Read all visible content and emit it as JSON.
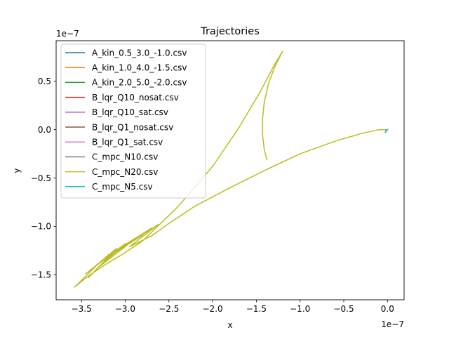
{
  "chart_data": {
    "type": "line",
    "title": "Trajectories",
    "xlabel": "x",
    "ylabel": "y",
    "x_scale_label": "1e−7",
    "y_scale_label": "1e−7",
    "x_scale": 1e-07,
    "y_scale": 1e-07,
    "xlim": [
      -3.79,
      0.19
    ],
    "ylim": [
      -1.76,
      0.92
    ],
    "x_ticks": [
      {
        "value": -3.5,
        "label": "−3.5"
      },
      {
        "value": -3.0,
        "label": "−3.0"
      },
      {
        "value": -2.5,
        "label": "−2.5"
      },
      {
        "value": -2.0,
        "label": "−2.0"
      },
      {
        "value": -1.5,
        "label": "−1.5"
      },
      {
        "value": -1.0,
        "label": "−1.0"
      },
      {
        "value": -0.5,
        "label": "−0.5"
      },
      {
        "value": 0.0,
        "label": "0.0"
      }
    ],
    "y_ticks": [
      {
        "value": 0.5,
        "label": "0.5"
      },
      {
        "value": 0.0,
        "label": "0.0"
      },
      {
        "value": -0.5,
        "label": "−0.5"
      },
      {
        "value": -1.0,
        "label": "−1.0"
      },
      {
        "value": -1.5,
        "label": "−1.5"
      }
    ],
    "grid": false,
    "legend_position": "upper-left",
    "series": [
      {
        "name": "A_kin_0.5_3.0_-1.0.csv",
        "color": "#1f77b4",
        "x": [
          0.0,
          -0.01,
          -0.02
        ],
        "y": [
          0.0,
          -0.01,
          -0.02
        ]
      },
      {
        "name": "A_kin_1.0_4.0_-1.5.csv",
        "color": "#ff7f0e",
        "x": [
          0.0,
          -0.01,
          -0.02
        ],
        "y": [
          0.0,
          -0.01,
          -0.02
        ]
      },
      {
        "name": "A_kin_2.0_5.0_-2.0.csv",
        "color": "#2ca02c",
        "x": [
          0.0,
          -0.01,
          -0.02
        ],
        "y": [
          0.0,
          -0.01,
          -0.02
        ]
      },
      {
        "name": "B_lqr_Q10_nosat.csv",
        "color": "#d62728",
        "x": [
          0.0,
          -0.01,
          -0.02
        ],
        "y": [
          0.0,
          -0.01,
          -0.02
        ]
      },
      {
        "name": "B_lqr_Q10_sat.csv",
        "color": "#9467bd",
        "x": [
          0.0,
          -0.01,
          -0.02
        ],
        "y": [
          0.0,
          -0.01,
          -0.02
        ]
      },
      {
        "name": "B_lqr_Q1_nosat.csv",
        "color": "#8c564b",
        "x": [
          0.0,
          -0.01,
          -0.02
        ],
        "y": [
          0.0,
          -0.01,
          -0.02
        ]
      },
      {
        "name": "B_lqr_Q1_sat.csv",
        "color": "#e377c2",
        "x": [
          0.0,
          -0.01,
          -0.02
        ],
        "y": [
          0.0,
          -0.01,
          -0.02
        ]
      },
      {
        "name": "C_mpc_N10.csv",
        "color": "#7f7f7f",
        "x": [
          0.0,
          -0.01,
          -0.02
        ],
        "y": [
          0.0,
          -0.01,
          -0.02
        ]
      },
      {
        "name": "C_mpc_N20.csv",
        "color": "#bcbd22",
        "x": [
          -1.38,
          -1.41,
          -1.43,
          -1.43,
          -1.41,
          -1.36,
          -1.29,
          -1.2,
          -1.3,
          -1.45,
          -1.7,
          -2.0,
          -2.4,
          -2.8,
          -3.05,
          -3.2,
          -3.3,
          -3.4,
          -3.5,
          -3.58,
          -3.3,
          -3.45,
          -3.15,
          -3.42,
          -3.1,
          -3.38,
          -3.0,
          -3.3,
          -2.9,
          -3.25,
          -2.8,
          -3.2,
          -2.7,
          -3.1,
          -2.62,
          -2.95,
          -2.7,
          -2.5,
          -2.2,
          -1.8,
          -1.4,
          -1.0,
          -0.6,
          -0.3,
          -0.1,
          0.0
        ],
        "y": [
          -0.31,
          -0.2,
          -0.05,
          0.1,
          0.28,
          0.48,
          0.65,
          0.81,
          0.66,
          0.4,
          0.02,
          -0.38,
          -0.8,
          -1.15,
          -1.3,
          -1.38,
          -1.44,
          -1.5,
          -1.57,
          -1.63,
          -1.38,
          -1.49,
          -1.28,
          -1.53,
          -1.23,
          -1.44,
          -1.18,
          -1.42,
          -1.14,
          -1.35,
          -1.09,
          -1.3,
          -1.02,
          -1.26,
          -0.98,
          -1.21,
          -1.1,
          -0.97,
          -0.79,
          -0.6,
          -0.42,
          -0.25,
          -0.12,
          -0.04,
          0.0,
          0.0
        ]
      },
      {
        "name": "C_mpc_N5.csv",
        "color": "#17becf",
        "x": [
          0.0,
          -0.01,
          -0.02,
          -0.015,
          -0.025
        ],
        "y": [
          0.0,
          -0.01,
          -0.02,
          -0.005,
          -0.03
        ]
      }
    ]
  }
}
